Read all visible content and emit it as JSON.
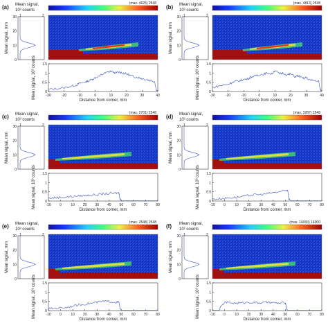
{
  "shared": {
    "colorbar_label": "Mean signal, 10³ counts",
    "colorbar_label_f": "Mean signal, 10² counts",
    "colorbar_ticks": [
      "1",
      "2"
    ],
    "left_ylabel": "Mean signal, mm",
    "profile_ylabel": "Mean signal, 10³ counts",
    "xlabel": "Distance from corner, mm",
    "left_profile_yticks": [
      "0",
      "10",
      "20",
      "30"
    ],
    "left_profile_xticks": [
      "1",
      "2"
    ]
  },
  "chart_data": [
    {
      "id": "a",
      "letter": "(a)",
      "type": "line",
      "annotation": "(max. 4625) 2548",
      "xlabel": "Distance from corner, mm",
      "ylabel": "Mean signal, 10³ counts",
      "xlim": [
        -30,
        40
      ],
      "ylim": [
        0,
        1.5
      ],
      "xticks": [
        "-30",
        "-20",
        "-10",
        "0",
        "10",
        "20",
        "30",
        "40"
      ],
      "yticks": [
        "0",
        "0.5",
        "1",
        "1.5"
      ],
      "x": [
        -30,
        -25,
        -20,
        -15,
        -12,
        -10,
        -7,
        -5,
        -2,
        0,
        3,
        5,
        8,
        10,
        13,
        15,
        18,
        20,
        23,
        25,
        28,
        30,
        33,
        35,
        38,
        39,
        40
      ],
      "y": [
        0.12,
        0.15,
        0.2,
        0.3,
        0.35,
        0.45,
        0.5,
        0.55,
        0.65,
        0.75,
        0.85,
        0.95,
        1.05,
        1.1,
        1.0,
        1.05,
        1.0,
        0.95,
        0.85,
        0.8,
        0.75,
        0.7,
        0.65,
        0.6,
        0.55,
        0.1,
        0.05
      ]
    },
    {
      "id": "b",
      "letter": "(b)",
      "type": "line",
      "annotation": "(max. 4813) 2548",
      "xlabel": "Distance from corner, mm",
      "ylabel": "Mean signal, 10³ counts",
      "xlim": [
        -30,
        40
      ],
      "ylim": [
        0,
        1.5
      ],
      "xticks": [
        "-30",
        "-20",
        "-10",
        "0",
        "10",
        "20",
        "30",
        "40"
      ],
      "yticks": [
        "0",
        "0.5",
        "1",
        "1.5"
      ],
      "x": [
        -30,
        -26,
        -23,
        -20,
        -17,
        -15,
        -12,
        -10,
        -7,
        -5,
        -2,
        0,
        3,
        5,
        8,
        10,
        13,
        15,
        18,
        20,
        23,
        25,
        28,
        30,
        33,
        35,
        38,
        39,
        40
      ],
      "y": [
        0.2,
        0.3,
        0.35,
        0.4,
        0.5,
        0.55,
        0.6,
        0.65,
        0.7,
        0.8,
        0.85,
        0.9,
        0.95,
        1.0,
        0.95,
        1.15,
        0.95,
        1.0,
        0.9,
        0.95,
        0.8,
        0.85,
        0.7,
        0.75,
        0.6,
        0.6,
        0.55,
        0.1,
        0.05
      ]
    },
    {
      "id": "c",
      "letter": "(c)",
      "type": "line",
      "annotation": "(max. 2701) 2548",
      "xlabel": "Distance from corner, mm",
      "ylabel": "Mean signal, 10³ counts",
      "xlim": [
        -10,
        80
      ],
      "ylim": [
        0,
        1.5
      ],
      "xticks": [
        "-10",
        "0",
        "10",
        "20",
        "30",
        "40",
        "50",
        "60",
        "70",
        "80"
      ],
      "yticks": [
        "0",
        "0.5",
        "1",
        "1.5"
      ],
      "x": [
        -10,
        -5,
        0,
        5,
        10,
        15,
        20,
        25,
        30,
        35,
        40,
        45,
        48,
        49,
        50,
        55,
        60,
        70,
        80
      ],
      "y": [
        0.15,
        0.18,
        0.2,
        0.22,
        0.25,
        0.28,
        0.3,
        0.32,
        0.35,
        0.38,
        0.4,
        0.42,
        0.45,
        0.1,
        0.02,
        0.02,
        0.02,
        0.02,
        0.02
      ]
    },
    {
      "id": "d",
      "letter": "(d)",
      "type": "line",
      "annotation": "(max. 3287) 2548",
      "xlabel": "Distance from corner, mm",
      "ylabel": "Mean signal, 10³ counts",
      "xlim": [
        -10,
        80
      ],
      "ylim": [
        0,
        1.5
      ],
      "xticks": [
        "-10",
        "0",
        "10",
        "20",
        "30",
        "40",
        "50",
        "60",
        "70",
        "80"
      ],
      "yticks": [
        "0",
        "0.5",
        "1",
        "1.5"
      ],
      "x": [
        -10,
        -5,
        0,
        5,
        10,
        15,
        20,
        25,
        30,
        35,
        40,
        45,
        50,
        52,
        53,
        55,
        60,
        70,
        80
      ],
      "y": [
        0.1,
        0.12,
        0.15,
        0.18,
        0.2,
        0.25,
        0.3,
        0.35,
        0.35,
        0.4,
        0.45,
        0.5,
        0.55,
        0.6,
        0.1,
        0.02,
        0.02,
        0.02,
        0.02
      ]
    },
    {
      "id": "e",
      "letter": "(e)",
      "type": "line",
      "annotation": "(max. 2548) 2548",
      "xlabel": "Distance from corner, mm",
      "ylabel": "Mean signal, 10³ counts",
      "xlim": [
        -10,
        80
      ],
      "ylim": [
        0,
        1.5
      ],
      "xticks": [
        "-10",
        "0",
        "10",
        "20",
        "30",
        "40",
        "50",
        "60",
        "70",
        "80"
      ],
      "yticks": [
        "0",
        "0.5",
        "1",
        "1.5"
      ],
      "x": [
        -10,
        -5,
        0,
        5,
        10,
        15,
        20,
        25,
        30,
        35,
        40,
        45,
        48,
        49,
        50,
        55,
        60,
        70,
        80
      ],
      "y": [
        0.1,
        0.12,
        0.15,
        0.18,
        0.25,
        0.3,
        0.35,
        0.4,
        0.45,
        0.5,
        0.5,
        0.45,
        0.45,
        0.1,
        0.02,
        0.02,
        0.02,
        0.02,
        0.02
      ]
    },
    {
      "id": "f",
      "letter": "(f)",
      "type": "line",
      "annotation": "(max. 14000) 14000",
      "xlabel": "Distance from corner, mm",
      "ylabel": "Mean signal, 10³ counts",
      "xlim": [
        -10,
        80
      ],
      "ylim": [
        0,
        1.5
      ],
      "xticks": [
        "-10",
        "0",
        "10",
        "20",
        "30",
        "40",
        "50",
        "60",
        "70",
        "80"
      ],
      "yticks": [
        "0",
        "0.5",
        "1",
        "1.5"
      ],
      "x": [
        -10,
        -5,
        0,
        5,
        10,
        15,
        20,
        25,
        30,
        35,
        40,
        45,
        50,
        51,
        52,
        55,
        60,
        70,
        80
      ],
      "y": [
        0.02,
        0.02,
        0.45,
        0.42,
        0.4,
        0.42,
        0.45,
        0.43,
        0.42,
        0.45,
        0.42,
        0.4,
        0.42,
        0.1,
        0.02,
        0.02,
        0.02,
        0.02,
        0.02
      ]
    }
  ],
  "colors": {
    "trace": "#3a57b8",
    "heatmap_bg": "#1838c8",
    "heatmap_floor": "#a01010",
    "streak_green": "#3fd070",
    "streak_yellow": "#f0e040",
    "streak_red": "#e82020"
  }
}
